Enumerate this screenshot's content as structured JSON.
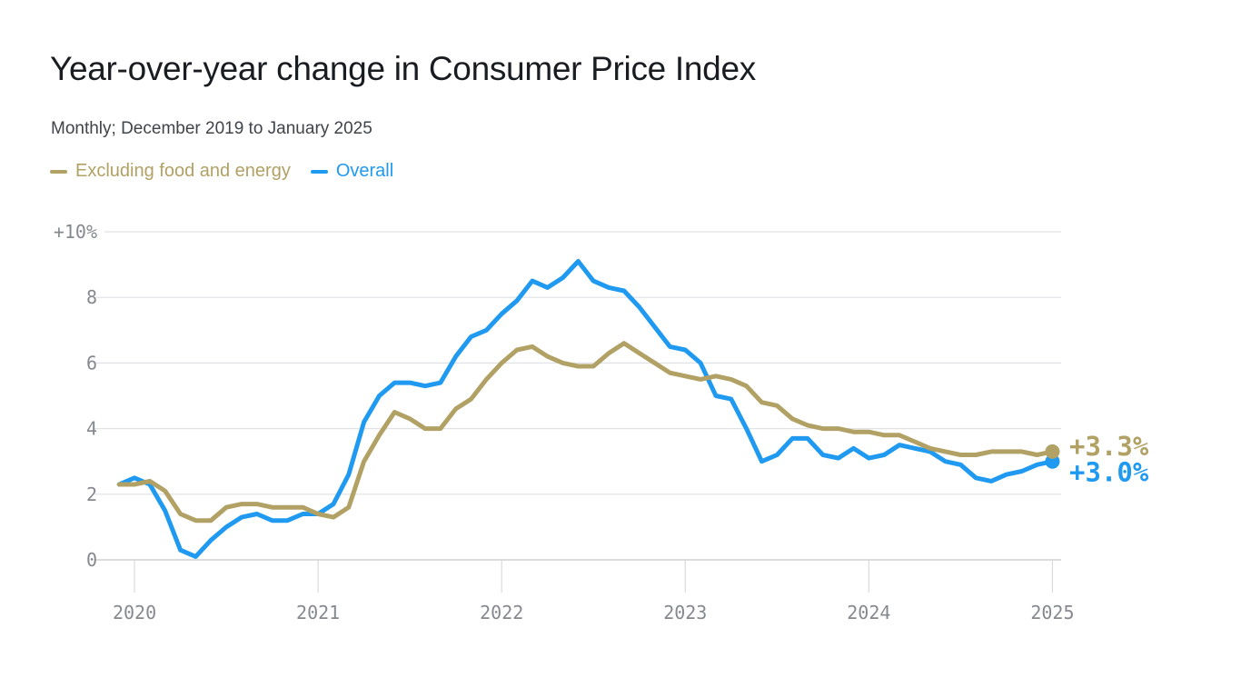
{
  "page": {
    "background": "#ffffff"
  },
  "header": {
    "title": "Year-over-year change in Consumer Price Index",
    "subtitle": "Monthly; December 2019 to January 2025"
  },
  "legend": [
    {
      "id": "core",
      "label": "Excluding food and energy",
      "color": "#b1a164"
    },
    {
      "id": "overall",
      "label": "Overall",
      "color": "#1f9af0"
    }
  ],
  "chart_data": {
    "type": "line",
    "title": "Year-over-year change in Consumer Price Index",
    "subtitle": "Monthly; December 2019 to January 2025",
    "unit": "%",
    "x_start": "2019-12",
    "x_end": "2025-01",
    "frequency": "monthly",
    "x_tick_labels": [
      "2020",
      "2021",
      "2022",
      "2023",
      "2024",
      "2025"
    ],
    "y_ticks": [
      0,
      2,
      4,
      6,
      8,
      10
    ],
    "y_tick_labels": [
      "0",
      "2",
      "4",
      "6",
      "8",
      "+10%"
    ],
    "ylim": [
      0,
      10
    ],
    "grid": "horizontal",
    "legend_position": "top-left",
    "series": [
      {
        "id": "core",
        "name": "Excluding food and energy",
        "color": "#b1a164",
        "end_label": "+3.3%",
        "values": [
          2.3,
          2.3,
          2.4,
          2.1,
          1.4,
          1.2,
          1.2,
          1.6,
          1.7,
          1.7,
          1.6,
          1.6,
          1.6,
          1.4,
          1.3,
          1.6,
          3.0,
          3.8,
          4.5,
          4.3,
          4.0,
          4.0,
          4.6,
          4.9,
          5.5,
          6.0,
          6.4,
          6.5,
          6.2,
          6.0,
          5.9,
          5.9,
          6.3,
          6.6,
          6.3,
          6.0,
          5.7,
          5.6,
          5.5,
          5.6,
          5.5,
          5.3,
          4.8,
          4.7,
          4.3,
          4.1,
          4.0,
          4.0,
          3.9,
          3.9,
          3.8,
          3.8,
          3.6,
          3.4,
          3.3,
          3.2,
          3.2,
          3.3,
          3.3,
          3.3,
          3.2,
          3.3
        ]
      },
      {
        "id": "overall",
        "name": "Overall",
        "color": "#1f9af0",
        "end_label": "+3.0%",
        "values": [
          2.3,
          2.5,
          2.3,
          1.5,
          0.3,
          0.1,
          0.6,
          1.0,
          1.3,
          1.4,
          1.2,
          1.2,
          1.4,
          1.4,
          1.7,
          2.6,
          4.2,
          5.0,
          5.4,
          5.4,
          5.3,
          5.4,
          6.2,
          6.8,
          7.0,
          7.5,
          7.9,
          8.5,
          8.3,
          8.6,
          9.1,
          8.5,
          8.3,
          8.2,
          7.7,
          7.1,
          6.5,
          6.4,
          6.0,
          5.0,
          4.9,
          4.0,
          3.0,
          3.2,
          3.7,
          3.7,
          3.2,
          3.1,
          3.4,
          3.1,
          3.2,
          3.5,
          3.4,
          3.3,
          3.0,
          2.9,
          2.5,
          2.4,
          2.6,
          2.7,
          2.9,
          3.0
        ]
      }
    ]
  }
}
